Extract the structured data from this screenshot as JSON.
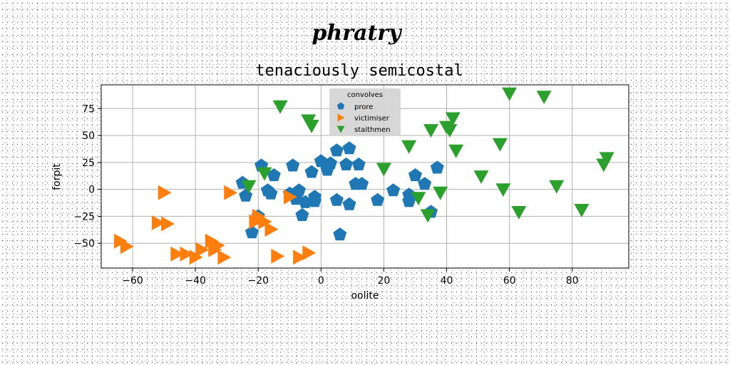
{
  "figure": {
    "suptitle": "phratry"
  },
  "chart_data": {
    "type": "scatter",
    "title": "tenaciously semicostal",
    "xlabel": "oolite",
    "ylabel": "forpit",
    "xlim": [
      -70,
      98
    ],
    "ylim": [
      -73,
      97
    ],
    "xticks": [
      -60,
      -40,
      -20,
      0,
      20,
      40,
      60,
      80
    ],
    "yticks": [
      -50,
      -25,
      0,
      25,
      50,
      75
    ],
    "xtick_labels": [
      "−60",
      "−40",
      "−20",
      "0",
      "20",
      "40",
      "60",
      "80"
    ],
    "ytick_labels": [
      "−50",
      "−25",
      "0",
      "25",
      "50",
      "75"
    ],
    "grid": true,
    "legend": {
      "title": "convolves",
      "placement": "top-center"
    },
    "series": [
      {
        "name": "prore",
        "marker": "pentagon",
        "color": "#1f77b4",
        "points": [
          [
            -19,
            22
          ],
          [
            -15,
            13
          ],
          [
            -9,
            22
          ],
          [
            -3,
            16
          ],
          [
            0,
            26
          ],
          [
            2,
            18
          ],
          [
            3,
            24
          ],
          [
            5,
            36
          ],
          [
            9,
            38
          ],
          [
            8,
            23
          ],
          [
            12,
            23
          ],
          [
            11,
            5
          ],
          [
            13,
            5
          ],
          [
            -25,
            6
          ],
          [
            -24,
            -6
          ],
          [
            -17,
            -1
          ],
          [
            -16,
            -4
          ],
          [
            -10,
            -4
          ],
          [
            -7,
            -1
          ],
          [
            -8,
            -9
          ],
          [
            -5,
            -12
          ],
          [
            -2,
            -7
          ],
          [
            -2,
            -11
          ],
          [
            -6,
            -24
          ],
          [
            -20,
            -25
          ],
          [
            -22,
            -40
          ],
          [
            5,
            -10
          ],
          [
            9,
            -14
          ],
          [
            6,
            -42
          ],
          [
            18,
            -10
          ],
          [
            23,
            -1
          ],
          [
            28,
            -5
          ],
          [
            28,
            -11
          ],
          [
            30,
            13
          ],
          [
            33,
            5
          ],
          [
            37,
            20
          ],
          [
            35,
            -21
          ]
        ]
      },
      {
        "name": "victimiser",
        "marker": "triangle-right",
        "color": "#ff7f0e",
        "points": [
          [
            -50,
            -3
          ],
          [
            -29,
            -3
          ],
          [
            -10,
            -7
          ],
          [
            -20,
            -25
          ],
          [
            -21,
            -30
          ],
          [
            -18,
            -30
          ],
          [
            -16,
            -37
          ],
          [
            -52,
            -31
          ],
          [
            -49,
            -32
          ],
          [
            -64,
            -48
          ],
          [
            -62,
            -53
          ],
          [
            -46,
            -60
          ],
          [
            -43,
            -60
          ],
          [
            -40,
            -63
          ],
          [
            -38,
            -56
          ],
          [
            -35,
            -48
          ],
          [
            -33,
            -52
          ],
          [
            -34,
            -56
          ],
          [
            -31,
            -63
          ],
          [
            -14,
            -62
          ],
          [
            -7,
            -63
          ],
          [
            -4,
            -59
          ]
        ]
      },
      {
        "name": "staithmen",
        "marker": "triangle-down",
        "color": "#2ca02c",
        "points": [
          [
            -13,
            77
          ],
          [
            -4,
            64
          ],
          [
            -3,
            59
          ],
          [
            -18,
            15
          ],
          [
            -23,
            3
          ],
          [
            28,
            40
          ],
          [
            20,
            19
          ],
          [
            35,
            55
          ],
          [
            40,
            58
          ],
          [
            41,
            55
          ],
          [
            42,
            66
          ],
          [
            43,
            36
          ],
          [
            51,
            12
          ],
          [
            57,
            42
          ],
          [
            58,
            0
          ],
          [
            60,
            89
          ],
          [
            63,
            -21
          ],
          [
            71,
            86
          ],
          [
            75,
            3
          ],
          [
            83,
            -19
          ],
          [
            91,
            29
          ],
          [
            90,
            23
          ],
          [
            31,
            -8
          ],
          [
            34,
            -24
          ],
          [
            38,
            -3
          ]
        ]
      }
    ]
  }
}
